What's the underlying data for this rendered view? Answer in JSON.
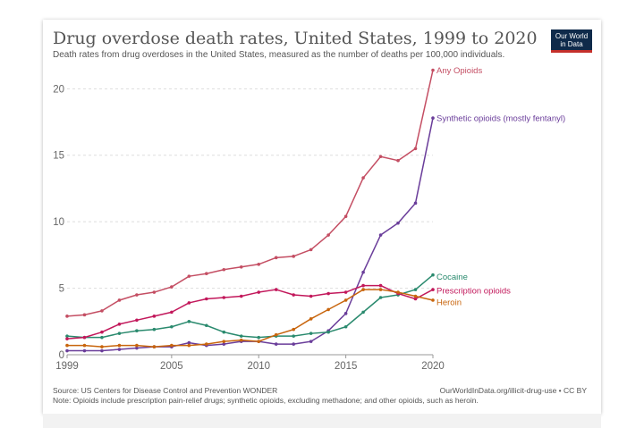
{
  "header": {
    "title": "Drug overdose death rates, United States, 1999 to 2020",
    "subtitle": "Death rates from drug overdoses in the United States, measured as the number of deaths per 100,000 individuals.",
    "logo_line1": "Our World",
    "logo_line2": "in Data"
  },
  "footer": {
    "source": "Source: US Centers for Disease Control and Prevention WONDER",
    "note": "Note: Opioids include prescription pain-relief drugs; synthetic opioids, excluding methadone; and other opioids, such as heroin.",
    "url": "OurWorldInData.org/illicit-drug-use • CC BY"
  },
  "colors": {
    "logo_bg": "#0f2a4a",
    "logo_accent": "#c4302b"
  },
  "chart_data": {
    "type": "line",
    "title": "Drug overdose death rates, United States, 1999 to 2020",
    "xlim": [
      1999,
      2020
    ],
    "ylim": [
      0,
      21.5
    ],
    "x_ticks": [
      "1999",
      "2005",
      "2010",
      "2015",
      "2020"
    ],
    "y_ticks": [
      "0",
      "5",
      "10",
      "15",
      "20"
    ],
    "grid": "horizontal dashed",
    "legend": "inline labels at right end of lines",
    "x": [
      1999,
      2000,
      2001,
      2002,
      2003,
      2004,
      2005,
      2006,
      2007,
      2008,
      2009,
      2010,
      2011,
      2012,
      2013,
      2014,
      2015,
      2016,
      2017,
      2018,
      2019,
      2020
    ],
    "series": [
      {
        "name": "Any Opioids",
        "color": "#c44e63",
        "values": [
          2.9,
          3.0,
          3.3,
          4.1,
          4.5,
          4.7,
          5.1,
          5.9,
          6.1,
          6.4,
          6.6,
          6.8,
          7.3,
          7.4,
          7.9,
          9.0,
          10.4,
          13.3,
          14.9,
          14.6,
          15.5,
          21.4
        ]
      },
      {
        "name": "Synthetic opioids (mostly fentanyl)",
        "color": "#6a3d9a",
        "values": [
          0.3,
          0.3,
          0.3,
          0.4,
          0.5,
          0.6,
          0.6,
          0.9,
          0.7,
          0.8,
          1.0,
          1.0,
          0.8,
          0.8,
          1.0,
          1.8,
          3.1,
          6.2,
          9.0,
          9.9,
          11.4,
          17.8
        ]
      },
      {
        "name": "Cocaine",
        "color": "#2a8a6e",
        "values": [
          1.4,
          1.3,
          1.3,
          1.6,
          1.8,
          1.9,
          2.1,
          2.5,
          2.2,
          1.7,
          1.4,
          1.3,
          1.4,
          1.4,
          1.6,
          1.7,
          2.1,
          3.2,
          4.3,
          4.5,
          4.9,
          6.0
        ]
      },
      {
        "name": "Prescription opioids",
        "color": "#c2185b",
        "values": [
          1.2,
          1.3,
          1.7,
          2.3,
          2.6,
          2.9,
          3.2,
          3.9,
          4.2,
          4.3,
          4.4,
          4.7,
          4.9,
          4.5,
          4.4,
          4.6,
          4.7,
          5.2,
          5.2,
          4.6,
          4.2,
          4.9
        ]
      },
      {
        "name": "Heroin",
        "color": "#c8650d",
        "values": [
          0.7,
          0.7,
          0.6,
          0.7,
          0.7,
          0.6,
          0.7,
          0.7,
          0.8,
          1.0,
          1.1,
          1.0,
          1.5,
          1.9,
          2.7,
          3.4,
          4.1,
          4.9,
          4.9,
          4.7,
          4.4,
          4.1
        ]
      }
    ]
  }
}
